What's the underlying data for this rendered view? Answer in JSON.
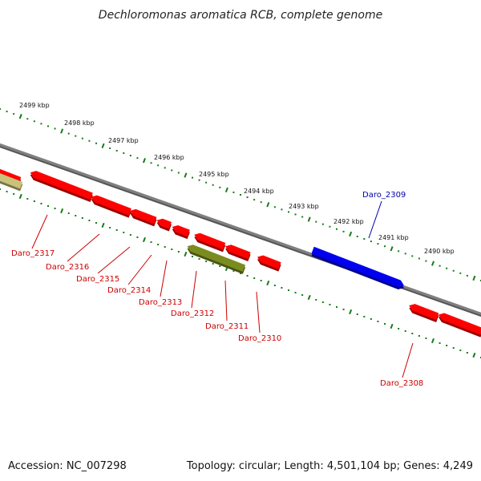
{
  "title": "Dechloromonas aromatica RCB, complete genome",
  "footer": {
    "accession": "Accession: NC_007298",
    "stats": "Topology: circular; Length: 4,501,104 bp; Genes: 4,249"
  },
  "colors": {
    "forward_gene": "#0000ee",
    "reverse_gene": "#ff0000",
    "olive_gene": "#7a8c1e",
    "pale_olive_gene": "#c9c27a",
    "backbone": "#808080",
    "tick": "#1a7a1a",
    "label_red": "#cc0000",
    "label_blue": "#0000aa"
  },
  "ticks_kbp": [
    "2499 kbp",
    "2498 kbp",
    "2497 kbp",
    "2496 kbp",
    "2495 kbp",
    "2494 kbp",
    "2493 kbp",
    "2492 kbp",
    "2491 kbp",
    "2490 kbp"
  ],
  "genes": [
    {
      "id": "Daro_2317",
      "strand": "reverse",
      "color": "red"
    },
    {
      "id": "Daro_2316",
      "strand": "reverse",
      "color": "red"
    },
    {
      "id": "Daro_2315",
      "strand": "reverse",
      "color": "red"
    },
    {
      "id": "Daro_2314",
      "strand": "reverse",
      "color": "red"
    },
    {
      "id": "Daro_2313",
      "strand": "reverse",
      "color": "red"
    },
    {
      "id": "Daro_2312",
      "strand": "reverse",
      "color": "olive"
    },
    {
      "id": "Daro_2311",
      "strand": "reverse",
      "color": "red"
    },
    {
      "id": "Daro_2310",
      "strand": "reverse",
      "color": "red"
    },
    {
      "id": "Daro_2309",
      "strand": "forward",
      "color": "blue"
    },
    {
      "id": "Daro_2308",
      "strand": "reverse",
      "color": "red"
    }
  ]
}
